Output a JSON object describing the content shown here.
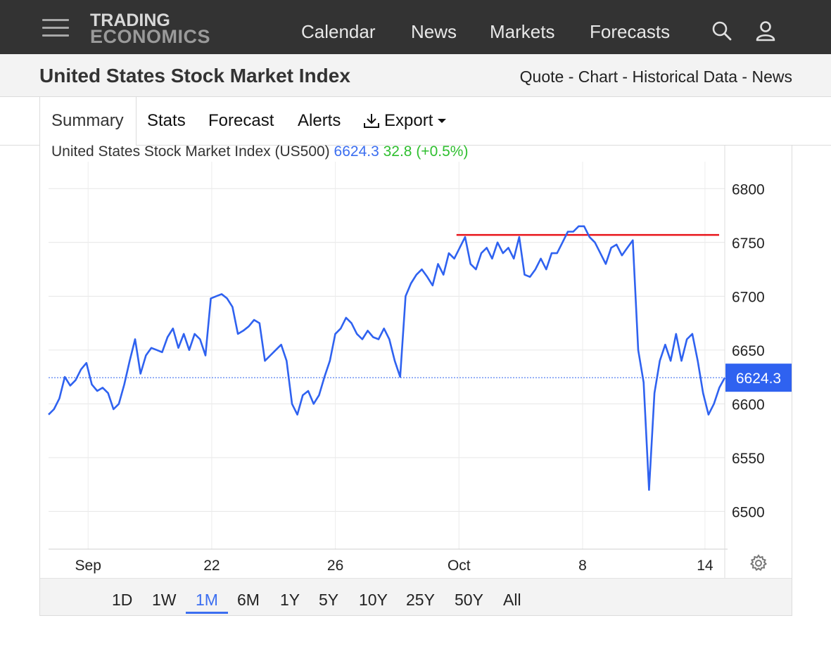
{
  "nav": {
    "logo_line1": "TRADING",
    "logo_line2": "ECONOMICS",
    "links": [
      "Calendar",
      "News",
      "Markets",
      "Forecasts"
    ],
    "icons": [
      "search-icon",
      "user-icon",
      "menu-icon"
    ]
  },
  "header": {
    "title": "United States Stock Market Index",
    "links": [
      "Quote",
      "Chart",
      "Historical Data",
      "News"
    ],
    "separator": " - "
  },
  "tabs": {
    "summary": "Summary",
    "stats": "Stats",
    "forecast": "Forecast",
    "alerts": "Alerts",
    "export": "Export"
  },
  "legend": {
    "name": "United States Stock Market Index (US500)",
    "last": "6624.3",
    "change": "32.8 (+0.5%)"
  },
  "colors": {
    "series": "#2f62f0",
    "resistance": "#e8151b",
    "change_positive": "#2fbf2f",
    "nav_bg": "#333333",
    "price_tag": "#2f62f0"
  },
  "ranges": {
    "items": [
      "1D",
      "1W",
      "1M",
      "6M",
      "1Y",
      "5Y",
      "10Y",
      "25Y",
      "50Y",
      "All"
    ],
    "active": "1M"
  },
  "chart_data": {
    "type": "line",
    "title": "",
    "ylim": [
      6465,
      6825
    ],
    "y_ticks": [
      6500,
      6550,
      6600,
      6650,
      6700,
      6750,
      6800
    ],
    "x_ticks": [
      "Sep",
      "22",
      "26",
      "Oct",
      "8",
      "14"
    ],
    "grid": true,
    "last_price_label": "6624.3",
    "last_price": 6624.3,
    "resistance_level": 6757,
    "resistance_start_index": 30,
    "x_index_range": [
      0,
      54.7
    ],
    "x_tick_index": [
      3.2,
      13.2,
      23.2,
      33.2,
      43.2,
      53.1
    ],
    "series": [
      {
        "values": [
          6590,
          6595,
          6605,
          6625,
          6617,
          6622,
          6632,
          6638,
          6618,
          6612,
          6615,
          6610,
          6595,
          6600,
          6618,
          6640,
          6660,
          6628,
          6645,
          6652,
          6650,
          6648,
          6662,
          6670,
          6652,
          6665,
          6650,
          6665,
          6660,
          6645,
          6698,
          6700,
          6702,
          6698,
          6690,
          6665,
          6668,
          6672,
          6678,
          6675,
          6640,
          6645,
          6650,
          6655,
          6640,
          6600,
          6590,
          6608,
          6612,
          6600,
          6608,
          6625,
          6640,
          6665,
          6670,
          6680,
          6675,
          6665,
          6660,
          6668,
          6662,
          6660,
          6670,
          6660,
          6640,
          6625,
          6700,
          6712,
          6720,
          6725,
          6718,
          6710,
          6730,
          6720,
          6740,
          6735,
          6745,
          6755,
          6730,
          6725,
          6740,
          6745,
          6735,
          6750,
          6740,
          6745,
          6735,
          6755,
          6720,
          6718,
          6725,
          6735,
          6725,
          6740,
          6740,
          6750,
          6760,
          6760,
          6765,
          6765,
          6755,
          6750,
          6740,
          6730,
          6745,
          6748,
          6738,
          6745,
          6752,
          6650,
          6620,
          6520,
          6610,
          6640,
          6655,
          6640,
          6665,
          6640,
          6660,
          6665,
          6640,
          6610,
          6590,
          6600,
          6615,
          6624.3
        ]
      }
    ]
  }
}
